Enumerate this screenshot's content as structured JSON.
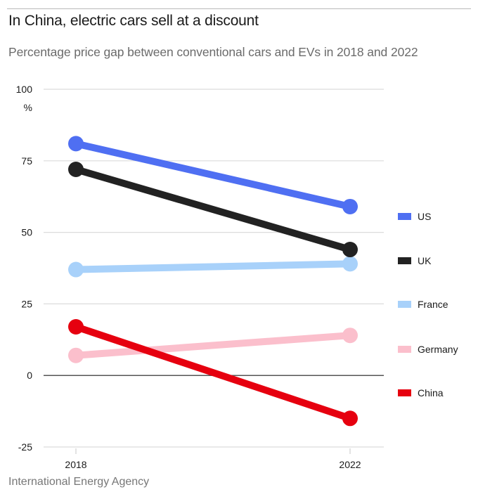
{
  "header": {
    "title": "In China, electric cars sell at a discount",
    "subtitle": "Percentage price gap between conventional cars and EVs in 2018 and 2022"
  },
  "footer": {
    "source": "International Energy Agency"
  },
  "chart_data": {
    "type": "line",
    "title": "In China, electric cars sell at a discount",
    "subtitle": "Percentage price gap between conventional cars and EVs in 2018 and 2022",
    "xlabel": "",
    "ylabel": "%",
    "x": [
      "2018",
      "2022"
    ],
    "ylim": [
      -25,
      100
    ],
    "yticks": [
      100,
      75,
      50,
      25,
      0,
      -25
    ],
    "ytick_labels": [
      "100",
      "75",
      "50",
      "25",
      "0",
      "-25"
    ],
    "yunit_label": "%",
    "grid": true,
    "legend_position": "right",
    "series": [
      {
        "name": "US",
        "color": "#4f6ff2",
        "values": [
          81,
          59
        ]
      },
      {
        "name": "UK",
        "color": "#222222",
        "values": [
          72,
          44
        ]
      },
      {
        "name": "France",
        "color": "#a8d1fa",
        "values": [
          37,
          39
        ]
      },
      {
        "name": "Germany",
        "color": "#fbbfcc",
        "values": [
          7,
          14
        ]
      },
      {
        "name": "China",
        "color": "#e6000f",
        "values": [
          17,
          -15
        ]
      }
    ],
    "source": "International Energy Agency"
  }
}
